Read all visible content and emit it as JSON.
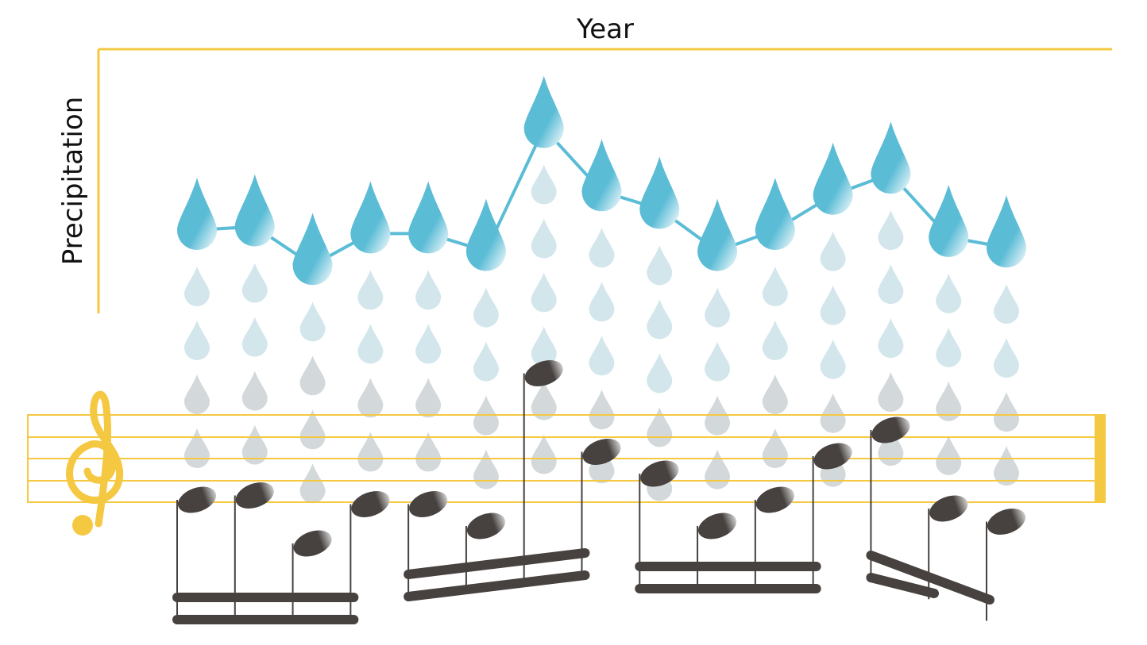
{
  "chart_data": {
    "type": "line",
    "title": "",
    "xlabel": "Year",
    "ylabel": "Precipitation",
    "categories": [
      "",
      "",
      "",
      "",
      "",
      "",
      "",
      "",
      "",
      "",
      "",
      "",
      "",
      "",
      ""
    ],
    "series": [
      {
        "values": [
          5.1,
          5.2,
          4.1,
          5.0,
          5.0,
          4.5,
          8.0,
          6.2,
          5.7,
          4.5,
          5.1,
          6.1,
          6.7,
          4.9,
          4.6
        ]
      }
    ],
    "ylim": [
      0,
      10
    ],
    "grid": false,
    "legend": "none",
    "colors": {
      "accent": "#F5C842",
      "line": "#5BBCD6",
      "drop": "#5BBCD6",
      "faint_drop_light": "#D2E6EC",
      "faint_drop_dark": "#D3D8DA",
      "note": "#47423F",
      "staff": "#F5C842"
    }
  }
}
